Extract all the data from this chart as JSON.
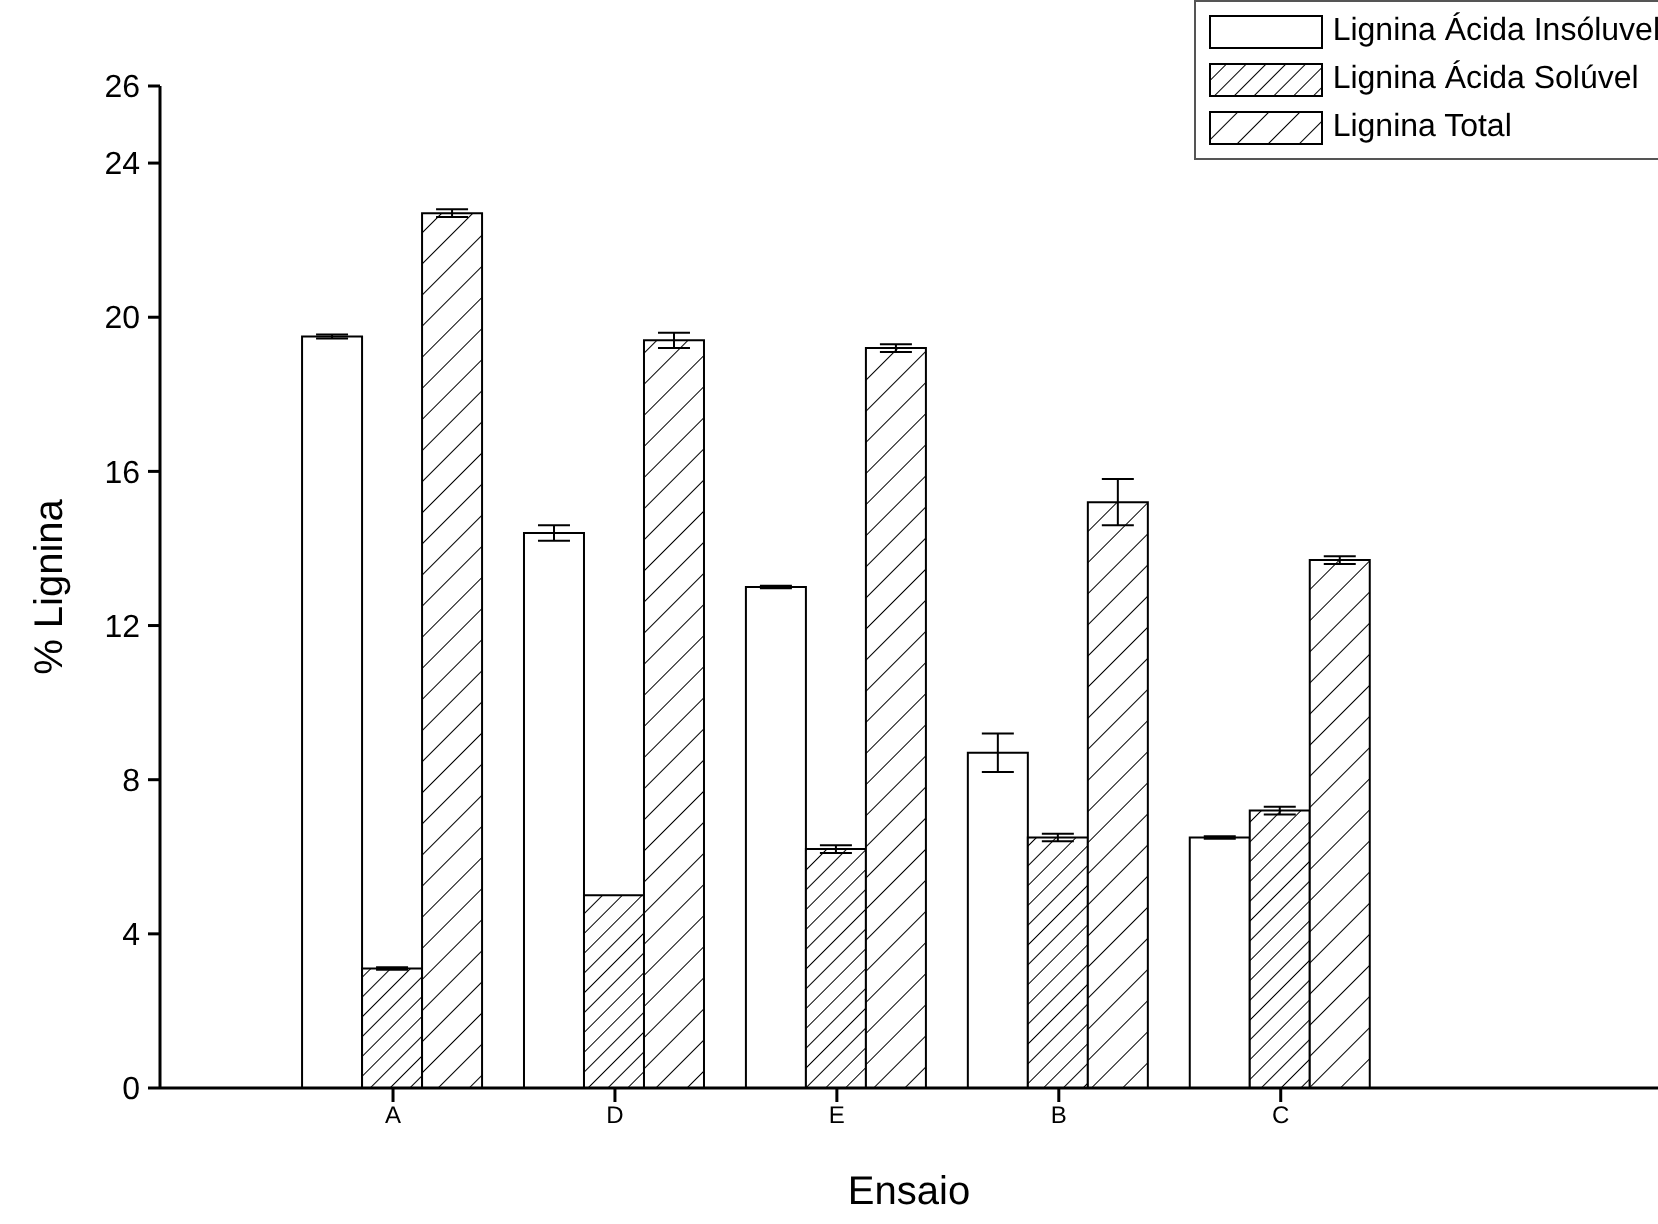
{
  "chart_data": {
    "type": "bar",
    "xlabel": "Ensaio",
    "ylabel": "% Lignina",
    "categories": [
      "A",
      "D",
      "E",
      "B",
      "C"
    ],
    "series": [
      {
        "name": "Lignina Ácida Insóluvel",
        "color": "#000000",
        "values": [
          19.5,
          14.4,
          13.0,
          8.7,
          6.5
        ],
        "errors": [
          0.05,
          0.2,
          0.03,
          0.5,
          0.03
        ]
      },
      {
        "name": "Lignina Ácida Solúvel",
        "color": "#000000",
        "values": [
          3.1,
          5.0,
          6.2,
          6.5,
          7.2
        ],
        "errors": [
          0.03,
          null,
          0.1,
          0.1,
          0.1
        ]
      },
      {
        "name": "Lignina Total",
        "color": "#000000",
        "values": [
          22.7,
          19.4,
          19.2,
          15.2,
          13.7
        ],
        "errors": [
          0.1,
          0.2,
          0.1,
          0.6,
          0.1
        ]
      }
    ],
    "ylim": [
      0,
      26
    ],
    "yticks": [
      0,
      4,
      8,
      12,
      16,
      20,
      24,
      26
    ],
    "legend": "top right"
  }
}
